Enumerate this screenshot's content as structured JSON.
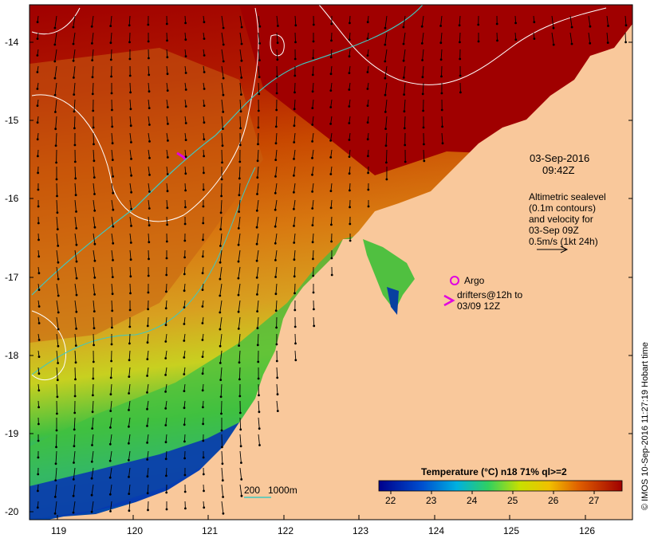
{
  "map": {
    "date": "03-Sep-2016",
    "time": "09:42Z",
    "altimetry_title": "Altimetric sealevel",
    "altimetry_line2": "(0.1m contours)",
    "altimetry_line3": "and velocity for",
    "altimetry_line4": "03-Sep 09Z",
    "velocity_scale": "0.5m/s (1kt 24h)",
    "argo_label": "Argo",
    "drifters_line1": "drifters@12h to",
    "drifters_line2": "03/09 12Z",
    "depth_legend_200": "200",
    "depth_legend_1000": "1000m",
    "credit": "© IMOS 10-Sep-2016 11:27:19 Hobart time",
    "colorbar_title": "Temperature (°C) n18 71% ql>=2",
    "colorbar_ticks": [
      "22",
      "23",
      "24",
      "25",
      "26",
      "27"
    ],
    "lat_labels": [
      "-14",
      "-15",
      "-16",
      "-17",
      "-18",
      "-19",
      "-20"
    ],
    "lon_labels": [
      "119",
      "120",
      "121",
      "122",
      "123",
      "124",
      "125",
      "126"
    ],
    "colors": {
      "land": "#f9c89b",
      "hot": "#a00000",
      "argo": "#e000e0",
      "isobath": "#40c8c0",
      "contour": "#ffffff"
    }
  }
}
